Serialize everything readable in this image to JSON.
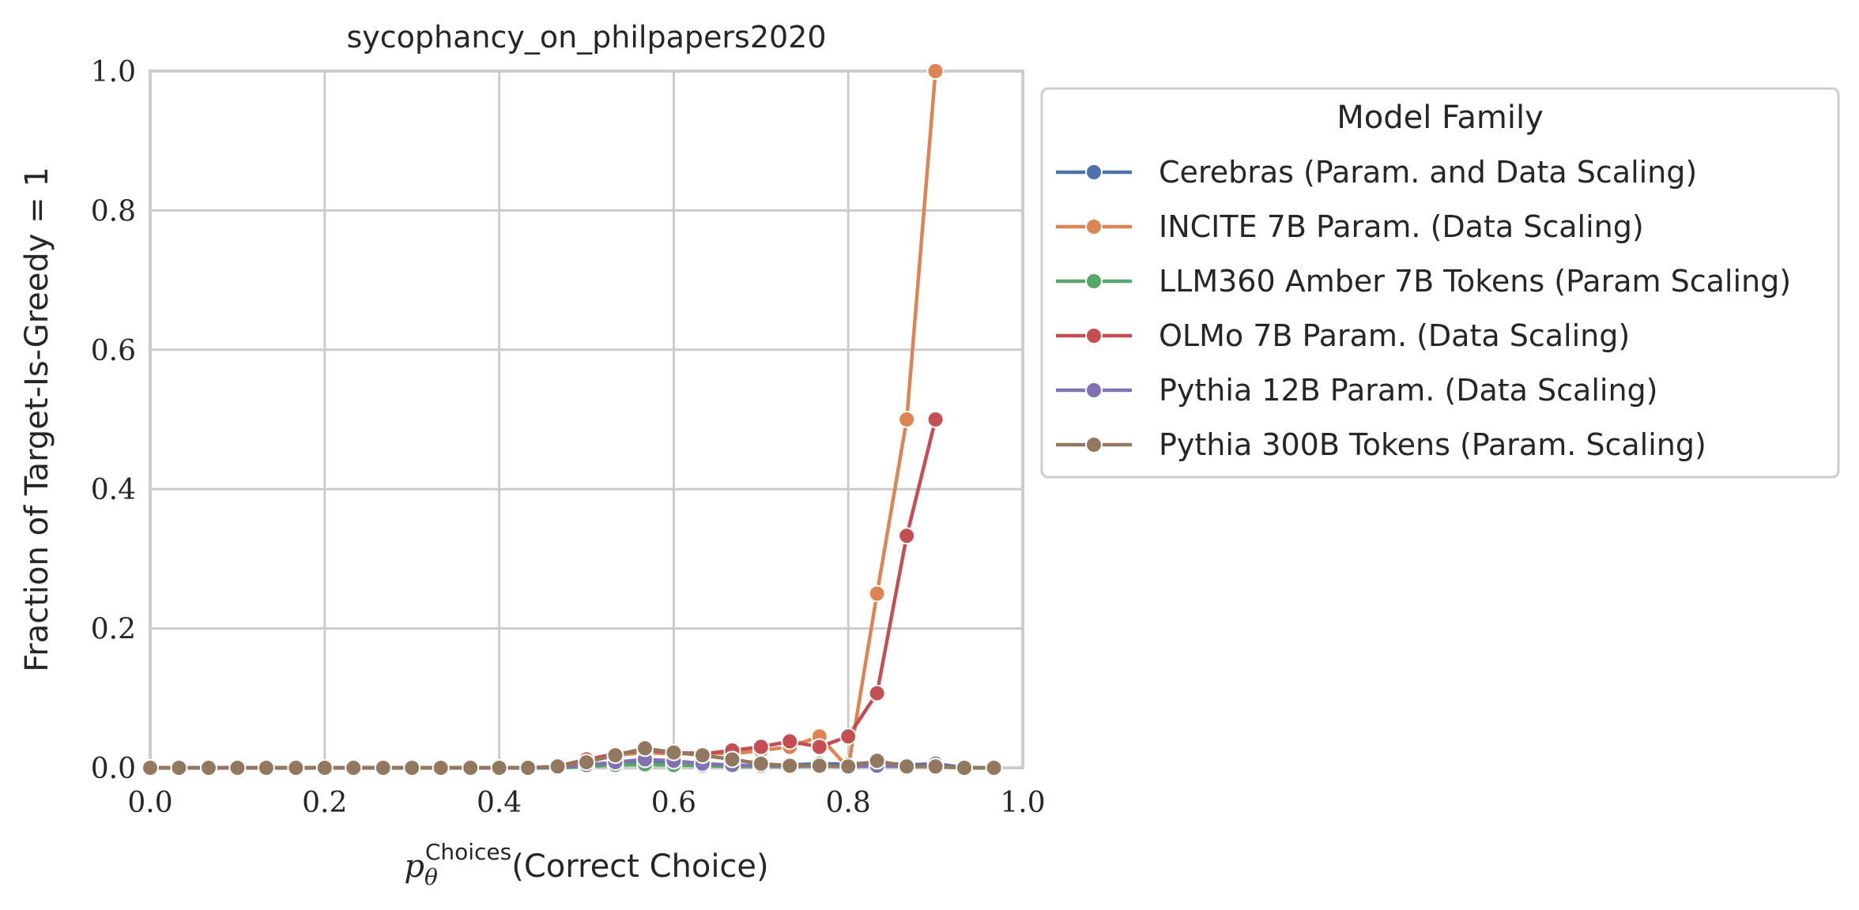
{
  "chart_data": {
    "type": "line",
    "title": "sycophancy_on_philpapers2020",
    "xlabel_symbol": "p",
    "xlabel_subscript": "θ",
    "xlabel_superscript": "Choices",
    "xlabel_text": "(Correct Choice)",
    "ylabel": "Fraction of Target-Is-Greedy = 1",
    "xlim": [
      0.0,
      1.0
    ],
    "ylim": [
      0.0,
      1.0
    ],
    "xticks": [
      "0.0",
      "0.2",
      "0.4",
      "0.6",
      "0.8",
      "1.0"
    ],
    "yticks": [
      "0.0",
      "0.2",
      "0.4",
      "0.6",
      "0.8",
      "1.0"
    ],
    "grid": true,
    "legend": {
      "title": "Model Family",
      "placement": "outside-upper-right"
    },
    "series": [
      {
        "name": "Cerebras (Param. and Data Scaling)",
        "color": "#4c72b0",
        "x": [
          0.0,
          0.033,
          0.067,
          0.1,
          0.133,
          0.167,
          0.2,
          0.233,
          0.267,
          0.3,
          0.333,
          0.367,
          0.4,
          0.433,
          0.467,
          0.5,
          0.533,
          0.567,
          0.6,
          0.633,
          0.667,
          0.7,
          0.733,
          0.767,
          0.8,
          0.833,
          0.867,
          0.9,
          0.933,
          0.967
        ],
        "y": [
          0.0,
          0.0,
          0.0,
          0.0,
          0.0,
          0.0,
          0.0,
          0.0,
          0.0,
          0.0,
          0.0,
          0.0,
          0.0,
          0.0,
          0.0,
          0.003,
          0.005,
          0.008,
          0.006,
          0.004,
          0.003,
          0.002,
          0.004,
          0.006,
          0.005,
          0.008,
          0.004,
          0.006,
          0.0,
          0.0
        ]
      },
      {
        "name": "INCITE 7B Param. (Data Scaling)",
        "color": "#dd8452",
        "x": [
          0.0,
          0.033,
          0.067,
          0.1,
          0.133,
          0.167,
          0.2,
          0.233,
          0.267,
          0.3,
          0.333,
          0.367,
          0.4,
          0.433,
          0.467,
          0.5,
          0.533,
          0.567,
          0.6,
          0.633,
          0.667,
          0.7,
          0.733,
          0.767,
          0.8,
          0.833,
          0.867,
          0.9
        ],
        "y": [
          0.0,
          0.0,
          0.0,
          0.0,
          0.0,
          0.0,
          0.0,
          0.0,
          0.0,
          0.0,
          0.0,
          0.0,
          0.0,
          0.0,
          0.002,
          0.01,
          0.018,
          0.022,
          0.02,
          0.022,
          0.02,
          0.025,
          0.03,
          0.045,
          0.0,
          0.25,
          0.5,
          1.0
        ]
      },
      {
        "name": "LLM360 Amber 7B Tokens (Param Scaling)",
        "color": "#55a868",
        "x": [
          0.0,
          0.033,
          0.067,
          0.1,
          0.133,
          0.167,
          0.2,
          0.233,
          0.267,
          0.3,
          0.333,
          0.367,
          0.4,
          0.433,
          0.467,
          0.5,
          0.533,
          0.567,
          0.6,
          0.633,
          0.667,
          0.7,
          0.733,
          0.767,
          0.8,
          0.833,
          0.867,
          0.9,
          0.933,
          0.967
        ],
        "y": [
          0.0,
          0.0,
          0.0,
          0.0,
          0.0,
          0.0,
          0.0,
          0.0,
          0.0,
          0.0,
          0.0,
          0.0,
          0.0,
          0.0,
          0.0,
          0.002,
          0.004,
          0.005,
          0.004,
          0.003,
          0.002,
          0.002,
          0.002,
          0.003,
          0.002,
          0.004,
          0.002,
          0.002,
          0.0,
          0.0
        ]
      },
      {
        "name": "OLMo 7B Param. (Data Scaling)",
        "color": "#c44e52",
        "x": [
          0.0,
          0.033,
          0.067,
          0.1,
          0.133,
          0.167,
          0.2,
          0.233,
          0.267,
          0.3,
          0.333,
          0.367,
          0.4,
          0.433,
          0.467,
          0.5,
          0.533,
          0.567,
          0.6,
          0.633,
          0.667,
          0.7,
          0.733,
          0.767,
          0.8,
          0.833,
          0.867,
          0.9
        ],
        "y": [
          0.0,
          0.0,
          0.0,
          0.0,
          0.0,
          0.0,
          0.0,
          0.0,
          0.0,
          0.0,
          0.0,
          0.0,
          0.0,
          0.0,
          0.002,
          0.012,
          0.02,
          0.025,
          0.022,
          0.02,
          0.025,
          0.03,
          0.038,
          0.03,
          0.045,
          0.107,
          0.333,
          0.5
        ]
      },
      {
        "name": "Pythia 12B Param. (Data Scaling)",
        "color": "#8172b3",
        "x": [
          0.0,
          0.033,
          0.067,
          0.1,
          0.133,
          0.167,
          0.2,
          0.233,
          0.267,
          0.3,
          0.333,
          0.367,
          0.4,
          0.433,
          0.467,
          0.5,
          0.533,
          0.567,
          0.6,
          0.633,
          0.667,
          0.7,
          0.733,
          0.767,
          0.8,
          0.833,
          0.867,
          0.9,
          0.933,
          0.967
        ],
        "y": [
          0.0,
          0.0,
          0.0,
          0.0,
          0.0,
          0.0,
          0.0,
          0.0,
          0.0,
          0.0,
          0.0,
          0.0,
          0.0,
          0.0,
          0.001,
          0.004,
          0.008,
          0.012,
          0.01,
          0.006,
          0.004,
          0.003,
          0.003,
          0.003,
          0.002,
          0.003,
          0.002,
          0.002,
          0.0,
          0.0
        ]
      },
      {
        "name": "Pythia 300B Tokens (Param. Scaling)",
        "color": "#937860",
        "x": [
          0.0,
          0.033,
          0.067,
          0.1,
          0.133,
          0.167,
          0.2,
          0.233,
          0.267,
          0.3,
          0.333,
          0.367,
          0.4,
          0.433,
          0.467,
          0.5,
          0.533,
          0.567,
          0.6,
          0.633,
          0.667,
          0.7,
          0.733,
          0.767,
          0.8,
          0.833,
          0.867,
          0.9,
          0.933,
          0.967
        ],
        "y": [
          0.0,
          0.0,
          0.0,
          0.0,
          0.0,
          0.0,
          0.0,
          0.0,
          0.0,
          0.0,
          0.0,
          0.0,
          0.0,
          0.0,
          0.002,
          0.008,
          0.018,
          0.028,
          0.022,
          0.018,
          0.012,
          0.006,
          0.003,
          0.003,
          0.002,
          0.01,
          0.002,
          0.002,
          0.0,
          0.0
        ]
      }
    ]
  }
}
